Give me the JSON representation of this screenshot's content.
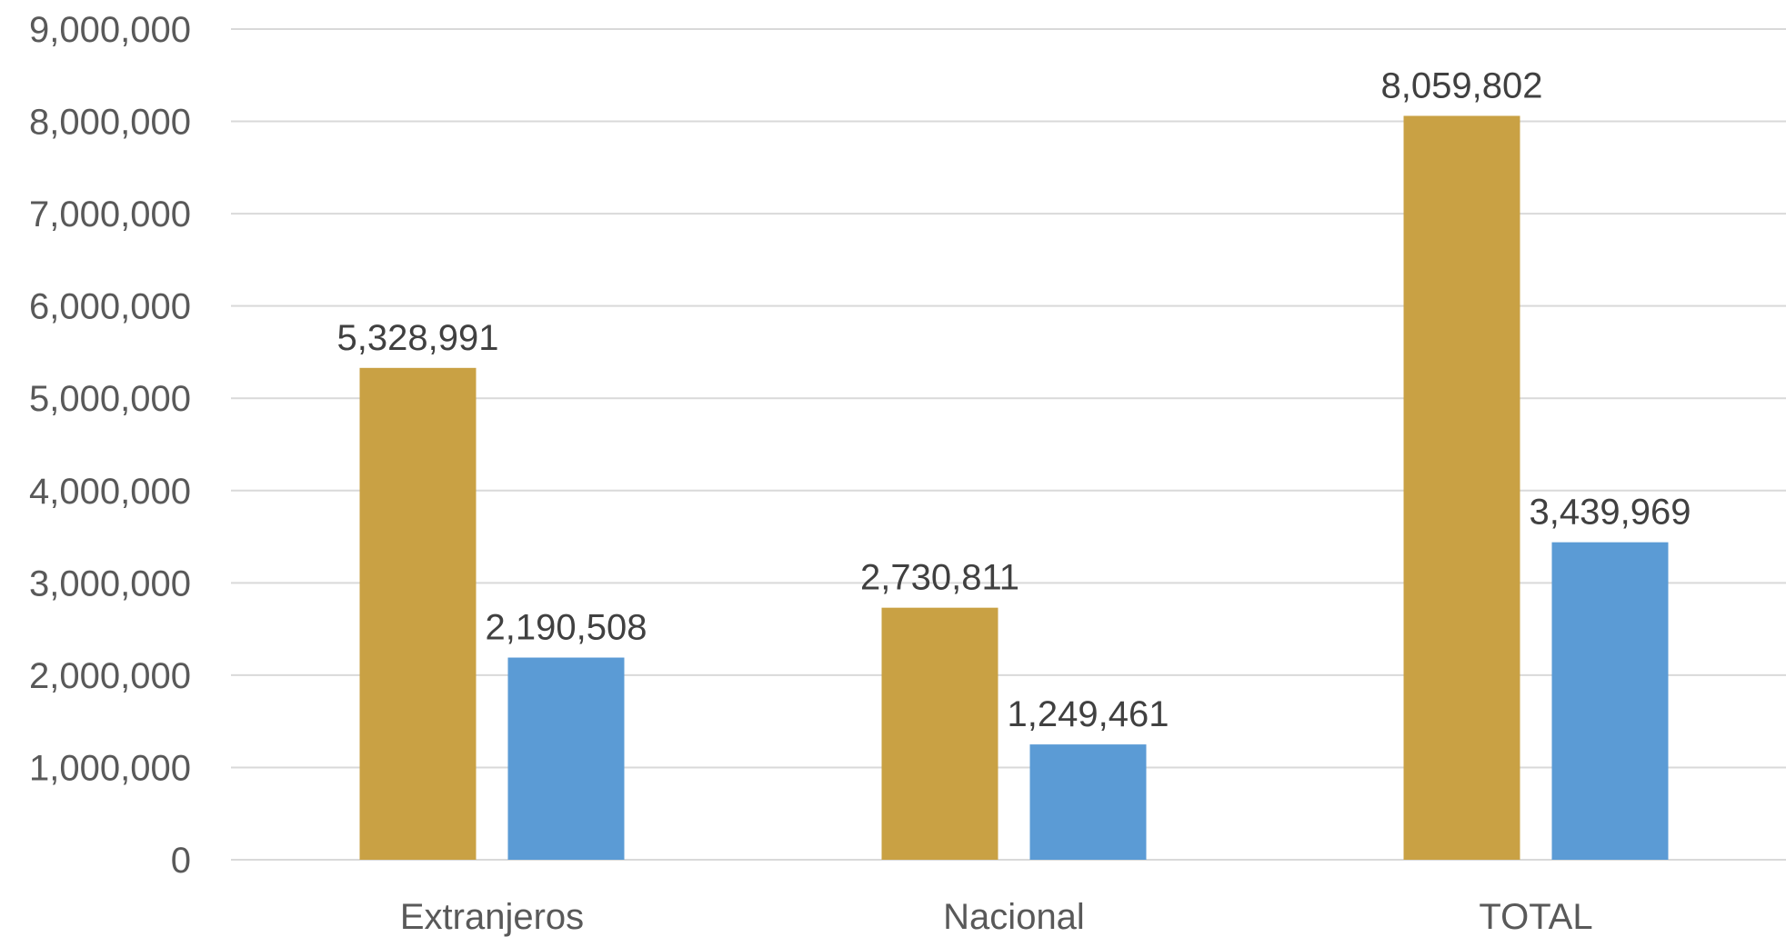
{
  "chart_data": {
    "type": "bar",
    "title": "",
    "xlabel": "",
    "ylabel": "",
    "categories": [
      "Extranjeros",
      "Nacional",
      "TOTAL"
    ],
    "series": [
      {
        "color": "#C9A144",
        "values": [
          5328991,
          2730811,
          8059802
        ],
        "labels": [
          "5,328,991",
          "2,730,811",
          "8,059,802"
        ]
      },
      {
        "color": "#5B9BD5",
        "values": [
          2190508,
          1249461,
          3439969
        ],
        "labels": [
          "2,190,508",
          "1,249,461",
          "3,439,969"
        ]
      }
    ],
    "ylim": [
      0,
      9000000
    ],
    "yticks": [
      0,
      1000000,
      2000000,
      3000000,
      4000000,
      5000000,
      6000000,
      7000000,
      8000000,
      9000000
    ],
    "ytick_labels": [
      "0",
      "1,000,000",
      "2,000,000",
      "3,000,000",
      "4,000,000",
      "5,000,000",
      "6,000,000",
      "7,000,000",
      "8,000,000",
      "9,000,000"
    ],
    "grid": true,
    "legend": "none",
    "gridline_color": "#D9D9D9"
  }
}
